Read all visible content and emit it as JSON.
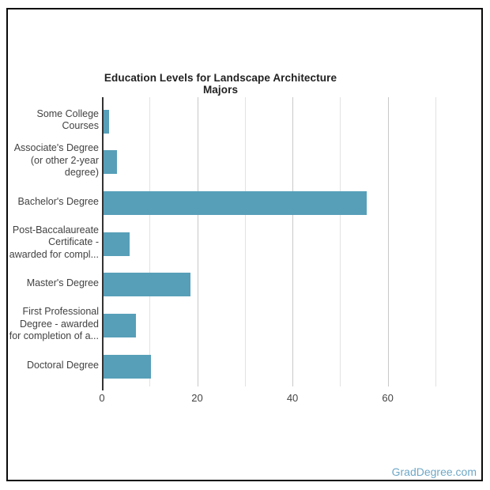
{
  "page": {
    "watermark": "GradDegree.com",
    "watermark_color": "#6ea7c6",
    "border_color": "#0a0a0a",
    "background_color": "#ffffff"
  },
  "chart_data": {
    "type": "bar",
    "orientation": "horizontal",
    "title": "Education Levels for Landscape Architecture Majors",
    "categories": [
      "Some College Courses",
      "Associate's Degree (or other 2-year degree)",
      "Bachelor's Degree",
      "Post-Baccalaureate Certificate - awarded for compl...",
      "Master's Degree",
      "First Professional Degree - awarded for completion of a...",
      "Doctoral Degree"
    ],
    "category_lines": [
      [
        "Some College",
        "Courses"
      ],
      [
        "Associate's Degree",
        "(or other 2-year",
        "degree)"
      ],
      [
        "Bachelor's Degree"
      ],
      [
        "Post-Baccalaureate",
        "Certificate -",
        "awarded for compl..."
      ],
      [
        "Master's Degree"
      ],
      [
        "First Professional",
        "Degree - awarded",
        "for completion of a..."
      ],
      [
        "Doctoral Degree"
      ]
    ],
    "values": [
      1.3,
      3,
      55.5,
      5.7,
      18.5,
      7,
      10.1
    ],
    "xlabel": "",
    "ylabel": "",
    "xlim": [
      0,
      75
    ],
    "x_ticks": [
      0,
      20,
      40,
      60
    ],
    "minor_gridlines": [
      10,
      30,
      50,
      70
    ],
    "grid": true,
    "legend": "none",
    "bar_color": "#579fb8",
    "major_grid_color": "#c8c8c8",
    "minor_grid_color": "#e2e2e2",
    "baseline_color": "#333333",
    "title_color": "#212121",
    "tick_label_color": "#444444",
    "category_label_color": "#424242"
  }
}
